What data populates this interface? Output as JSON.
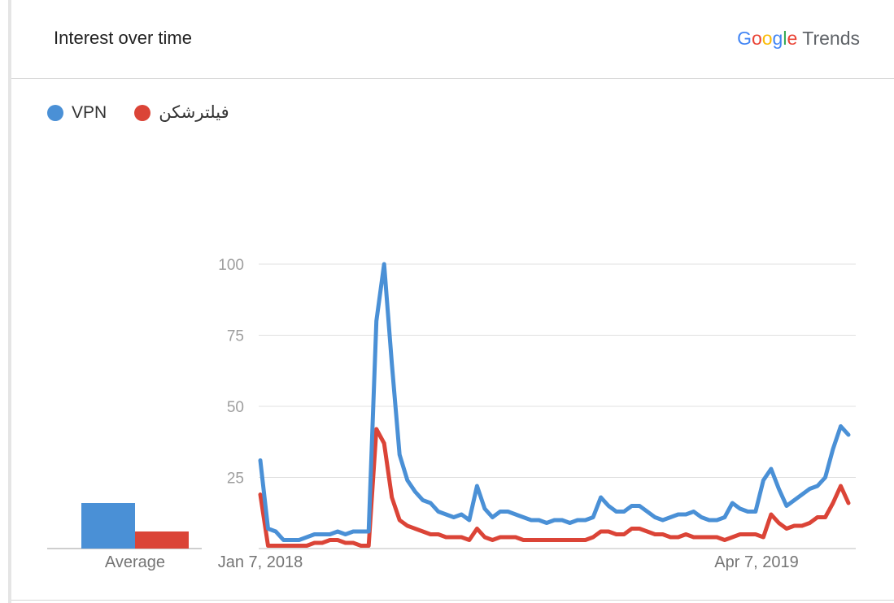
{
  "header": {
    "title": "Interest over time",
    "brand": {
      "letters": [
        "G",
        "o",
        "o",
        "g",
        "l",
        "e"
      ],
      "product": "Trends"
    }
  },
  "colors": {
    "vpn": "#4a90d6",
    "filtershekan": "#db4437",
    "grid": "#e0e0e0",
    "tick": "#9e9e9e"
  },
  "chart_data": {
    "type": "line",
    "legend_position": "top-left",
    "grid": true,
    "ylim": [
      0,
      100
    ],
    "y_ticks": [
      25,
      50,
      75,
      100
    ],
    "x_tick_labels": [
      "Jan 7, 2018",
      "Apr 7, 2019"
    ],
    "average": {
      "label": "Average",
      "values": [
        16,
        6
      ]
    },
    "series": [
      {
        "name": "VPN",
        "color": "#4a90d6",
        "values": [
          31,
          7,
          6,
          3,
          3,
          3,
          4,
          5,
          5,
          5,
          6,
          5,
          6,
          6,
          6,
          80,
          100,
          65,
          33,
          24,
          20,
          17,
          16,
          13,
          12,
          11,
          12,
          10,
          22,
          14,
          11,
          13,
          13,
          12,
          11,
          10,
          10,
          9,
          10,
          10,
          9,
          10,
          10,
          11,
          18,
          15,
          13,
          13,
          15,
          15,
          13,
          11,
          10,
          11,
          12,
          12,
          13,
          11,
          10,
          10,
          11,
          16,
          14,
          13,
          13,
          24,
          28,
          21,
          15,
          17,
          19,
          21,
          22,
          25,
          35,
          43,
          40
        ]
      },
      {
        "name": "فیلترشکن",
        "color": "#db4437",
        "values": [
          19,
          1,
          1,
          1,
          1,
          1,
          1,
          2,
          2,
          3,
          3,
          2,
          2,
          1,
          1,
          42,
          37,
          18,
          10,
          8,
          7,
          6,
          5,
          5,
          4,
          4,
          4,
          3,
          7,
          4,
          3,
          4,
          4,
          4,
          3,
          3,
          3,
          3,
          3,
          3,
          3,
          3,
          3,
          4,
          6,
          6,
          5,
          5,
          7,
          7,
          6,
          5,
          5,
          4,
          4,
          5,
          4,
          4,
          4,
          4,
          3,
          4,
          5,
          5,
          5,
          4,
          12,
          9,
          7,
          8,
          8,
          9,
          11,
          11,
          16,
          22,
          16
        ]
      }
    ]
  }
}
